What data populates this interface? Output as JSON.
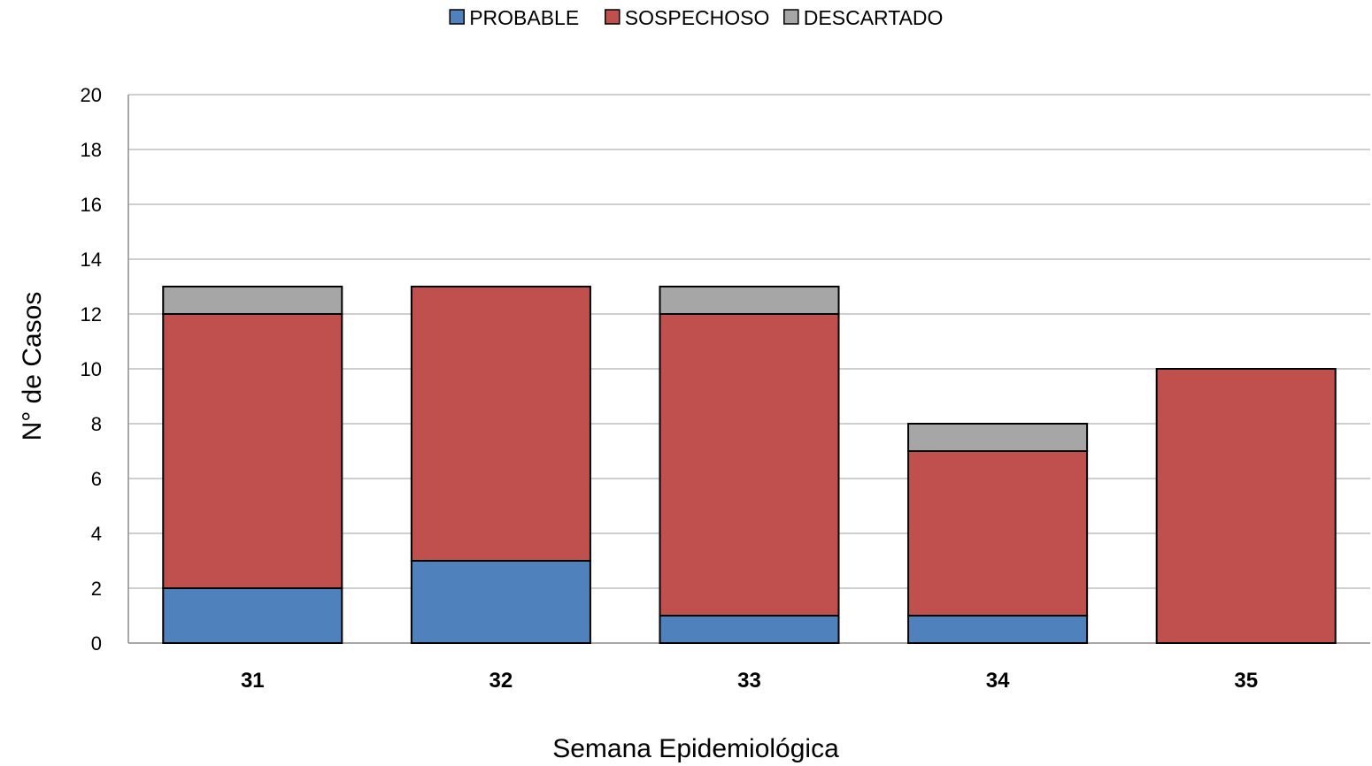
{
  "chart_data": {
    "type": "bar",
    "stacked": true,
    "categories": [
      "31",
      "32",
      "33",
      "34",
      "35"
    ],
    "series": [
      {
        "name": "PROBABLE",
        "values": [
          2,
          3,
          1,
          1,
          0
        ],
        "color": "#4f81bd"
      },
      {
        "name": "SOSPECHOSO",
        "values": [
          10,
          10,
          11,
          6,
          10
        ],
        "color": "#c0504d"
      },
      {
        "name": "DESCARTADO",
        "values": [
          1,
          0,
          1,
          1,
          0
        ],
        "color": "#a6a6a6"
      }
    ],
    "title": "",
    "xlabel": "Semana Epidemiológica",
    "ylabel": "N° de Casos",
    "ylim": [
      0,
      20
    ],
    "yticks": [
      0,
      2,
      4,
      6,
      8,
      10,
      12,
      14,
      16,
      18,
      20
    ],
    "grid": true,
    "legend_position": "top-center"
  }
}
